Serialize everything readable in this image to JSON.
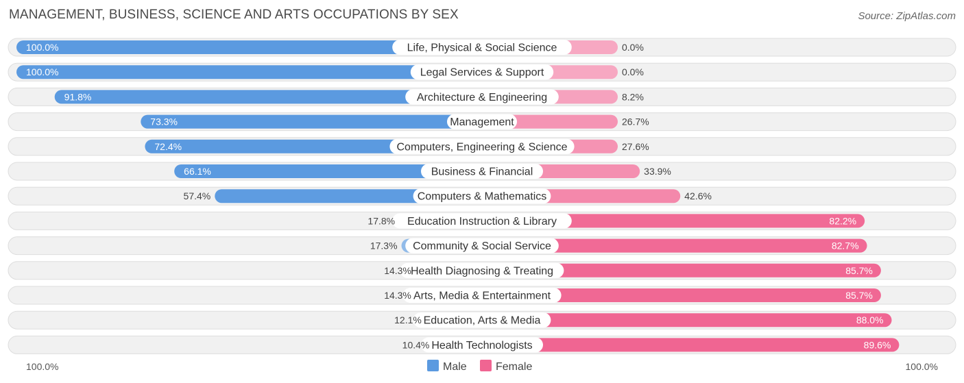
{
  "title": "MANAGEMENT, BUSINESS, SCIENCE AND ARTS OCCUPATIONS BY SEX",
  "source": "Source: ZipAtlas.com",
  "legend": {
    "male": "Male",
    "female": "Female"
  },
  "axis": {
    "left_label": "100.0%",
    "right_label": "100.0%"
  },
  "colors": {
    "male_strong": "#5b9ae0",
    "male_light": "#a7c8ec",
    "female_strong": "#f06592",
    "female_light": "#f7a8c2"
  },
  "chart_data": {
    "type": "bar",
    "orientation": "horizontal-diverging",
    "title": "MANAGEMENT, BUSINESS, SCIENCE AND ARTS OCCUPATIONS BY SEX",
    "xlim": [
      -100,
      100
    ],
    "categories": [
      "Life, Physical & Social Science",
      "Legal Services & Support",
      "Architecture & Engineering",
      "Management",
      "Computers, Engineering & Science",
      "Business & Financial",
      "Computers & Mathematics",
      "Education Instruction & Library",
      "Community & Social Service",
      "Health Diagnosing & Treating",
      "Arts, Media & Entertainment",
      "Education, Arts & Media",
      "Health Technologists"
    ],
    "series": [
      {
        "name": "Male",
        "values": [
          100.0,
          100.0,
          91.8,
          73.3,
          72.4,
          66.1,
          57.4,
          17.8,
          17.3,
          14.3,
          14.3,
          12.1,
          10.4
        ],
        "labels": [
          "100.0%",
          "100.0%",
          "91.8%",
          "73.3%",
          "72.4%",
          "66.1%",
          "57.4%",
          "17.8%",
          "17.3%",
          "14.3%",
          "14.3%",
          "12.1%",
          "10.4%"
        ]
      },
      {
        "name": "Female",
        "values": [
          0.0,
          0.0,
          8.2,
          26.7,
          27.6,
          33.9,
          42.6,
          82.2,
          82.7,
          85.7,
          85.7,
          88.0,
          89.6
        ],
        "labels": [
          "0.0%",
          "0.0%",
          "8.2%",
          "26.7%",
          "27.6%",
          "33.9%",
          "42.6%",
          "82.2%",
          "82.7%",
          "85.7%",
          "85.7%",
          "88.0%",
          "89.6%"
        ]
      }
    ],
    "legend_position": "bottom-center"
  }
}
